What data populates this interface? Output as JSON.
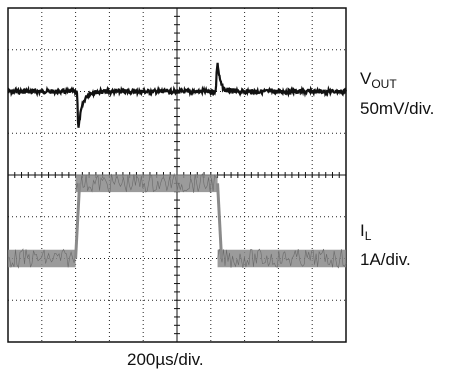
{
  "chart_data": {
    "type": "line",
    "grid": {
      "x_divisions": 10,
      "y_divisions": 8
    },
    "time_axis": {
      "per_division": "200µs/div.",
      "label": "200µs/div."
    },
    "traces": [
      {
        "name_main": "V",
        "name_sub": "OUT",
        "scale": "50mV/div.",
        "color": "#111111",
        "baseline_div": 2.0,
        "events": [
          {
            "t_div": 2.05,
            "kind": "undershoot",
            "peak_div": -1.2
          },
          {
            "t_div": 6.2,
            "kind": "overshoot",
            "peak_div": 1.3
          }
        ]
      },
      {
        "name_main": "I",
        "name_sub": "L",
        "scale": "1A/div.",
        "color": "#8a8a8a",
        "segments": [
          {
            "t_start_div": 0.0,
            "t_end_div": 2.0,
            "level_div": 6.0
          },
          {
            "t_start_div": 2.0,
            "t_end_div": 6.2,
            "level_div": 4.2
          },
          {
            "t_start_div": 6.2,
            "t_end_div": 10.0,
            "level_div": 6.0
          }
        ]
      }
    ]
  }
}
